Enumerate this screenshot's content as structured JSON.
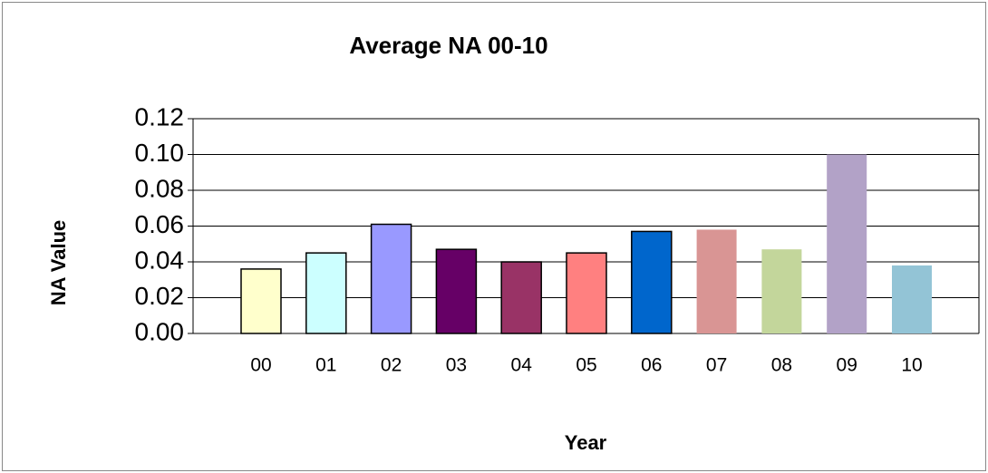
{
  "chart_data": {
    "type": "bar",
    "title": "Average NA 00-10",
    "x_label": "Year",
    "y_label": "NA Value",
    "categories": [
      "00",
      "01",
      "02",
      "03",
      "04",
      "05",
      "06",
      "07",
      "08",
      "09",
      "10"
    ],
    "values": [
      0.036,
      0.045,
      0.061,
      0.047,
      0.04,
      0.045,
      0.057,
      0.058,
      0.047,
      0.1,
      0.038
    ],
    "colors": [
      "#ffffcc",
      "#ccffff",
      "#9999ff",
      "#660066",
      "#993366",
      "#ff8080",
      "#0066cc",
      "#d99594",
      "#c3d69b",
      "#b2a2c7",
      "#93c4d6"
    ],
    "ylim": [
      0,
      0.12
    ],
    "yticks": [
      {
        "value": 0,
        "label": "0.00"
      },
      0.02,
      0.04,
      0.06,
      0.08,
      {
        "value": 0.1,
        "label": "0.10"
      },
      0.12
    ],
    "grid": true
  }
}
